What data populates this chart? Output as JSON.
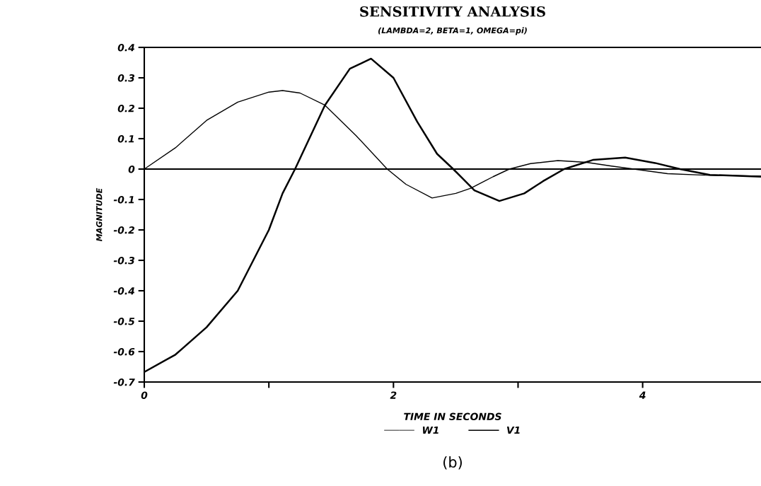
{
  "chart_data": {
    "type": "line",
    "title": "SENSITIVITY ANALYSIS",
    "subtitle": "(LAMBDA=2, BETA=1, OMEGA=pi)",
    "xlabel": "TIME IN SECONDS",
    "ylabel": "MAGNITUDE",
    "series": [
      {
        "name": "W1",
        "color": "#000000",
        "x": [
          0,
          0.25,
          0.5,
          0.75,
          1.0,
          1.11,
          1.25,
          1.45,
          1.7,
          1.95,
          2.1,
          2.31,
          2.5,
          2.62,
          2.8,
          2.93,
          3.1,
          3.32,
          3.55,
          3.75,
          3.93,
          4.2,
          4.5,
          4.95
        ],
        "values": [
          0,
          0.07,
          0.16,
          0.22,
          0.253,
          0.258,
          0.25,
          0.21,
          0.11,
          0.0,
          -0.05,
          -0.095,
          -0.08,
          -0.063,
          -0.025,
          0.0,
          0.018,
          0.028,
          0.022,
          0.01,
          0.0,
          -0.015,
          -0.02,
          -0.023
        ]
      },
      {
        "name": "V1",
        "color": "#000000",
        "x": [
          0,
          0.25,
          0.5,
          0.75,
          1.0,
          1.11,
          1.21,
          1.45,
          1.65,
          1.82,
          2.0,
          2.19,
          2.35,
          2.48,
          2.65,
          2.85,
          3.05,
          3.2,
          3.37,
          3.6,
          3.86,
          4.1,
          4.3,
          4.54,
          4.95
        ],
        "values": [
          -0.667,
          -0.61,
          -0.52,
          -0.4,
          -0.2,
          -0.08,
          0.0,
          0.21,
          0.33,
          0.363,
          0.3,
          0.156,
          0.05,
          0.0,
          -0.07,
          -0.105,
          -0.08,
          -0.04,
          0.0,
          0.03,
          0.038,
          0.02,
          0.0,
          -0.019,
          -0.025
        ]
      }
    ],
    "xlim": [
      0,
      4.95
    ],
    "ylim": [
      -0.7,
      0.4
    ],
    "xticks": [
      0,
      {
        "value": 1,
        "label": null
      },
      2,
      {
        "value": 3,
        "label": null
      },
      4
    ],
    "yticks": [
      -0.7,
      -0.6,
      -0.5,
      -0.4,
      -0.3,
      -0.2,
      -0.1,
      0,
      0.1,
      0.2,
      0.3,
      0.4
    ],
    "ref_lines": [
      {
        "axis": "y",
        "value": 0,
        "color": "#000000"
      }
    ],
    "legend": "bottom",
    "grid": false,
    "annotations": [
      "(b)"
    ]
  }
}
